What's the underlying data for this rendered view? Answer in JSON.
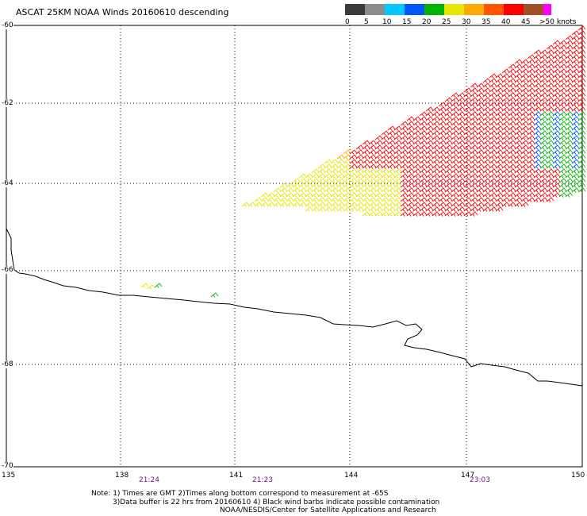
{
  "title": "ASCAT 25KM NOAA Winds 20160610 descending",
  "legend": {
    "colors": [
      "#3a3a3a",
      "#8c8c8c",
      "#00c8ff",
      "#0055ff",
      "#00b400",
      "#e6e600",
      "#ffaa00",
      "#ff5500",
      "#ff0000",
      "#a05028",
      "#ff00ff",
      "#6a00aa"
    ],
    "tick_labels": [
      "0",
      "5",
      "10",
      "15",
      "20",
      "25",
      "30",
      "35",
      "40",
      "45",
      ">50 knots"
    ]
  },
  "axes": {
    "lat_labels": [
      "-60",
      "-62",
      "-64",
      "-66",
      "-68",
      "-70"
    ],
    "lon_labels": [
      "135",
      "138",
      "141",
      "144",
      "147",
      "150"
    ],
    "time_labels": [
      "21:24",
      "21:23",
      "23:03"
    ]
  },
  "notes": {
    "line1": "Note: 1) Times are GMT 2)Times along bottom correspond to measurement at -65S",
    "line2": "3)Data buffer is 22 hrs from 20160610 4) Black wind barbs indicate possible contamination",
    "line3": "NOAA/NESDIS/Center for Satellite Applications and Research"
  },
  "map_features": {
    "coastline": "Antarctic coastline",
    "wind_barbs": "ASCAT wind barbs colored by speed"
  }
}
